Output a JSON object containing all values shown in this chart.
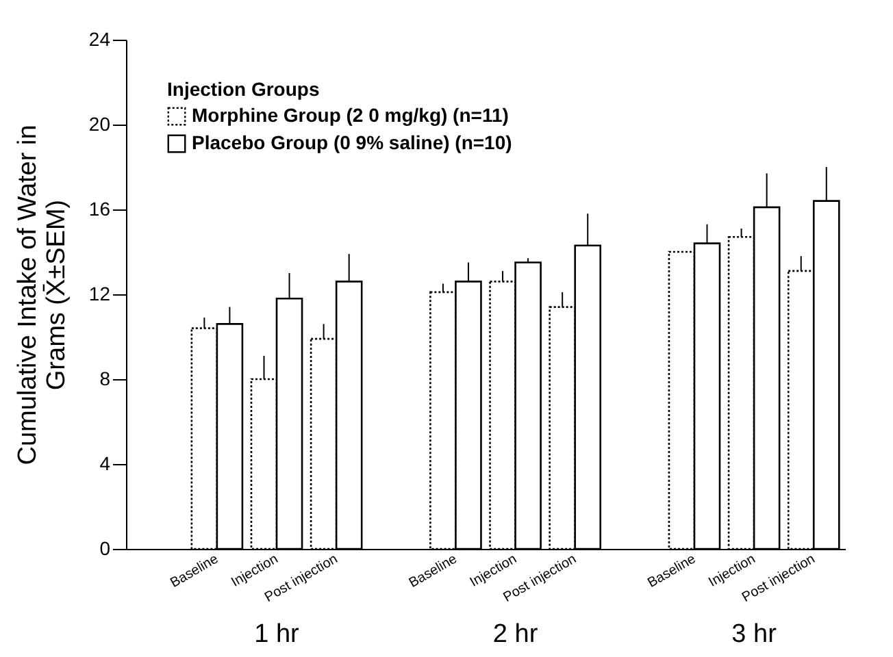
{
  "chart_data": {
    "type": "bar",
    "ylabel": "Cumulative Intake of Water in\nGrams (X̄±SEM)",
    "legend_title": "Injection Groups",
    "categories": [
      "Baseline",
      "Injection",
      "Post injection",
      "Baseline",
      "Injection",
      "Post injection",
      "Baseline",
      "Injection",
      "Post injection"
    ],
    "series": [
      {
        "name": "Morphine Group (2 0 mg/kg) (n=11)",
        "color": "#ffffff",
        "line_style": "dotted",
        "values": [
          10.4,
          8.0,
          9.9,
          12.1,
          12.6,
          11.4,
          14.0,
          14.7,
          13.1
        ],
        "errors": [
          [
            10.4,
            10.9
          ],
          [
            8.0,
            9.1
          ],
          [
            9.9,
            10.6
          ],
          [
            12.1,
            12.5
          ],
          [
            12.6,
            13.1
          ],
          [
            11.4,
            12.1
          ],
          null,
          [
            14.7,
            15.1
          ],
          [
            13.1,
            13.8
          ]
        ]
      },
      {
        "name": "Placebo Group (0 9% saline) (n=10)",
        "color": "#ffffff",
        "line_style": "solid",
        "values": [
          10.6,
          11.8,
          12.6,
          12.6,
          13.5,
          14.3,
          14.4,
          16.1,
          16.4
        ],
        "errors": [
          [
            10.6,
            11.4
          ],
          [
            11.8,
            13.0
          ],
          [
            12.6,
            13.9
          ],
          [
            12.6,
            13.5
          ],
          [
            13.5,
            13.7
          ],
          [
            14.3,
            15.8
          ],
          [
            14.4,
            15.3
          ],
          [
            16.1,
            17.7
          ],
          [
            16.4,
            18.0
          ]
        ]
      }
    ],
    "annotations": [
      "1 hr",
      "2 hr",
      "3 hr"
    ],
    "ylim": [
      0,
      24
    ],
    "yticks": [
      0,
      4,
      8,
      12,
      16,
      20,
      24
    ],
    "grid": false,
    "legend": "top left"
  }
}
